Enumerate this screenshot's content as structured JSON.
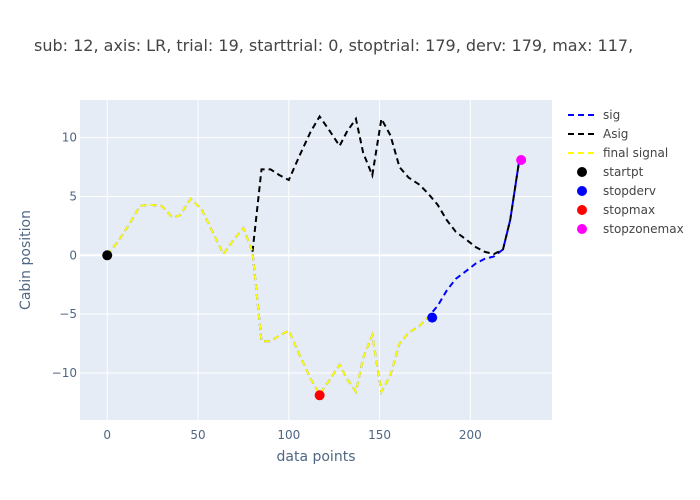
{
  "chart_data": {
    "type": "line",
    "title": "sub: 12, axis: LR, trial: 19, starttrial: 0, stoptrial: 179, derv: 179, max: 117,",
    "xlabel": "data points",
    "ylabel": "Cabin position",
    "xlim": [
      -15,
      245
    ],
    "ylim": [
      -14,
      13.2
    ],
    "xticks": [
      0,
      50,
      100,
      150,
      200
    ],
    "xtick_labels": [
      "0",
      "50",
      "100",
      "150",
      "200"
    ],
    "yticks": [
      -10,
      -5,
      0,
      5,
      10
    ],
    "ytick_labels": [
      "−10",
      "−5",
      "0",
      "5",
      "10"
    ],
    "grid": true,
    "legend_position": "right",
    "background": "#E5ECF6",
    "series": [
      {
        "name": "sig",
        "color": "#0000FF",
        "dash": "dash",
        "x": [
          0,
          6,
          12,
          18,
          23,
          30,
          36,
          40,
          46,
          52,
          58,
          64,
          70,
          75,
          80,
          85,
          90,
          95,
          100,
          106,
          112,
          117,
          122,
          128,
          132,
          137,
          141,
          146,
          151,
          156,
          161,
          166,
          172,
          177,
          182,
          187,
          192,
          198,
          203,
          208,
          213,
          218,
          222,
          227
        ],
        "y": [
          0,
          1.2,
          2.6,
          4.2,
          4.3,
          4.2,
          3.2,
          3.4,
          4.8,
          3.9,
          2.0,
          0.1,
          1.4,
          2.3,
          0.3,
          -7.3,
          -7.3,
          -6.8,
          -6.4,
          -8.5,
          -10.5,
          -11.8,
          -10.7,
          -9.3,
          -10.5,
          -11.6,
          -8.7,
          -6.8,
          -11.6,
          -10.2,
          -7.5,
          -6.6,
          -6.0,
          -5.2,
          -4.3,
          -3.0,
          -2.0,
          -1.3,
          -0.7,
          -0.3,
          -0.1,
          0.5,
          3.0,
          8.1
        ]
      },
      {
        "name": "Asig",
        "color": "#000000",
        "dash": "dash",
        "x": [
          80,
          85,
          90,
          95,
          100,
          106,
          112,
          117,
          122,
          128,
          132,
          137,
          141,
          146,
          151,
          156,
          161,
          166,
          172,
          177,
          182,
          187,
          192,
          198,
          203,
          208,
          213,
          218,
          222,
          227
        ],
        "y": [
          0.3,
          7.3,
          7.3,
          6.8,
          6.4,
          8.5,
          10.5,
          11.8,
          10.7,
          9.3,
          10.5,
          11.6,
          8.7,
          6.8,
          11.6,
          10.2,
          7.5,
          6.6,
          6.0,
          5.2,
          4.3,
          3.0,
          2.0,
          1.3,
          0.7,
          0.3,
          0.1,
          0.5,
          3.0,
          8.1
        ]
      },
      {
        "name": "final signal",
        "color": "#FFFF00",
        "dash": "dash",
        "x": [
          0,
          6,
          12,
          18,
          23,
          30,
          36,
          40,
          46,
          52,
          58,
          64,
          70,
          75,
          80,
          85,
          90,
          95,
          100,
          106,
          112,
          117,
          122,
          128,
          132,
          137,
          141,
          146,
          151,
          156,
          161,
          166,
          172,
          177
        ],
        "y": [
          0,
          1.2,
          2.6,
          4.2,
          4.3,
          4.2,
          3.2,
          3.4,
          4.8,
          3.9,
          2.0,
          0.1,
          1.4,
          2.3,
          0.3,
          -7.3,
          -7.3,
          -6.8,
          -6.4,
          -8.5,
          -10.5,
          -11.8,
          -10.7,
          -9.3,
          -10.5,
          -11.6,
          -8.7,
          -6.8,
          -11.6,
          -10.2,
          -7.5,
          -6.6,
          -6.0,
          -5.2
        ]
      }
    ],
    "points": [
      {
        "name": "startpt",
        "color": "#000000",
        "x": 0,
        "y": 0
      },
      {
        "name": "stopderv",
        "color": "#0000FF",
        "x": 179,
        "y": -5.3
      },
      {
        "name": "stopmax",
        "color": "#FF0000",
        "x": 117,
        "y": -11.9
      },
      {
        "name": "stopzonemax",
        "color": "#FF00FF",
        "x": 228,
        "y": 8.1
      }
    ]
  }
}
